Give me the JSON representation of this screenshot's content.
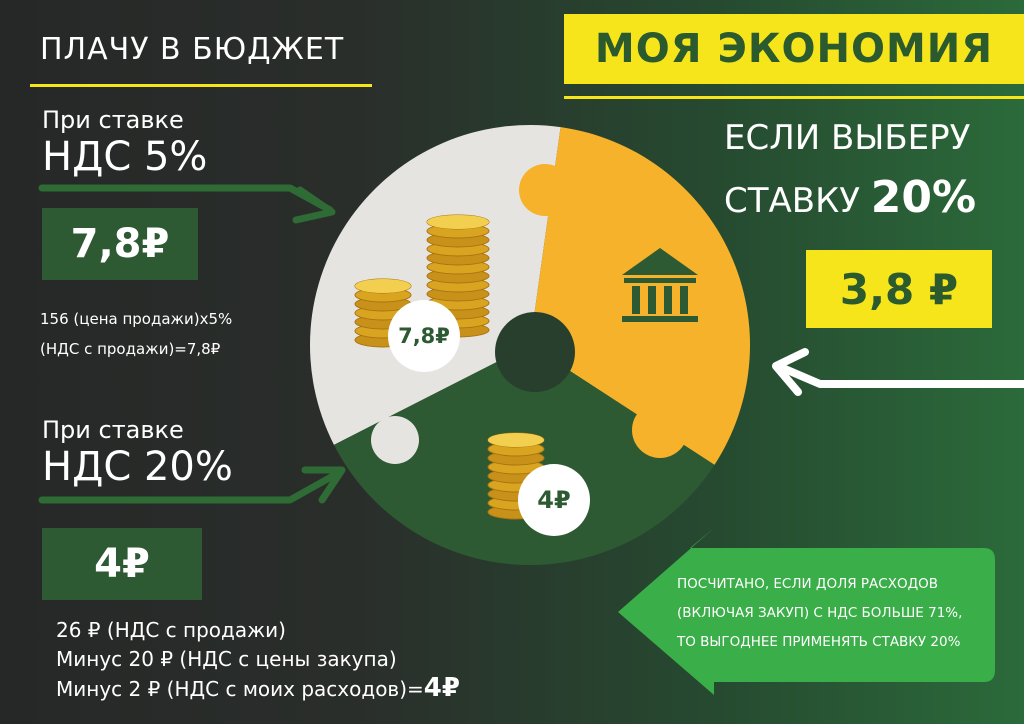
{
  "left": {
    "header": "ПЛАЧУ В БЮДЖЕТ",
    "block5": {
      "prefix": "При ставке",
      "rate": "НДС 5%",
      "amount": "7,8₽",
      "calc": [
        "156 (цена продажи)х5%",
        "(НДС с продажи)=7,8₽"
      ]
    },
    "block20": {
      "prefix": "При ставке",
      "rate": "НДС 20%",
      "amount": "4₽",
      "calc": [
        "26 ₽ (НДС с продажи)",
        "Минус 20 ₽ (НДС с цены закупа)",
        "Минус  2  ₽ (НДС с моих расходов)=",
        "4₽"
      ]
    }
  },
  "right": {
    "header": "МОЯ ЭКОНОМИЯ",
    "subtitle_line1": "ЕСЛИ ВЫБЕРУ",
    "subtitle_line2_a": "СТАВКУ ",
    "subtitle_line2_b": "20%",
    "amount": "3,8 ₽",
    "note": [
      "ПОСЧИТАНО, ЕСЛИ ДОЛЯ РАСХОДОВ",
      "(ВКЛЮЧАЯ ЗАКУП) С НДС БОЛЬШЕ 71%,",
      "ТО ВЫГОДНЕЕ ПРИМЕНЯТЬ СТАВКУ 20%"
    ]
  },
  "pie": {
    "gray_label": "7,8₽",
    "green_label": "4₽",
    "yellow_icon": "bank-building-icon",
    "colors": {
      "gray": "#e6e4e1",
      "yellow": "#f6b22b",
      "green": "#2d5a32"
    }
  },
  "colors": {
    "accent_yellow": "#f5e51a",
    "dark_green": "#2e5a33",
    "bright_green": "#3aae48"
  }
}
